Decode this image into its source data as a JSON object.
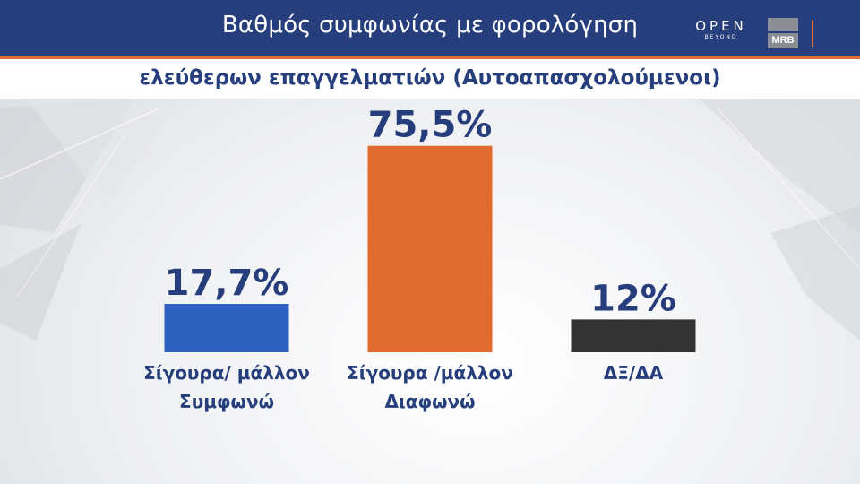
{
  "header": {
    "title": "Βαθμός συμφωνίας με φορολόγηση",
    "brand_main": "OPEN",
    "brand_sub": "BEYOND",
    "partner_logo": "MRB"
  },
  "subtitle": "ελεύθερων επαγγελματιών (Αυτοαπασχολούμενοι)",
  "colors": {
    "header_bg": "#263e7c",
    "accent": "#e06a2f",
    "text": "#263e7c"
  },
  "chart_data": {
    "type": "bar",
    "title": "Βαθμός συμφωνίας με φορολόγηση ελεύθερων επαγγελματιών (Αυτοαπασχολούμενοι)",
    "categories": [
      [
        "Σίγουρα/ μάλλον",
        "Συμφωνώ"
      ],
      [
        "Σίγουρα /μάλλον",
        "Διαφωνώ"
      ],
      [
        "ΔΞ/ΔΑ"
      ]
    ],
    "values": [
      17.7,
      75.5,
      12
    ],
    "value_labels": [
      "17,7%",
      "75,5%",
      "12%"
    ],
    "colors": [
      "#2f62bf",
      "#e06a2f",
      "#333333"
    ],
    "unit": "%",
    "ylim": [
      0,
      100
    ],
    "grid": false,
    "legend": "none"
  }
}
